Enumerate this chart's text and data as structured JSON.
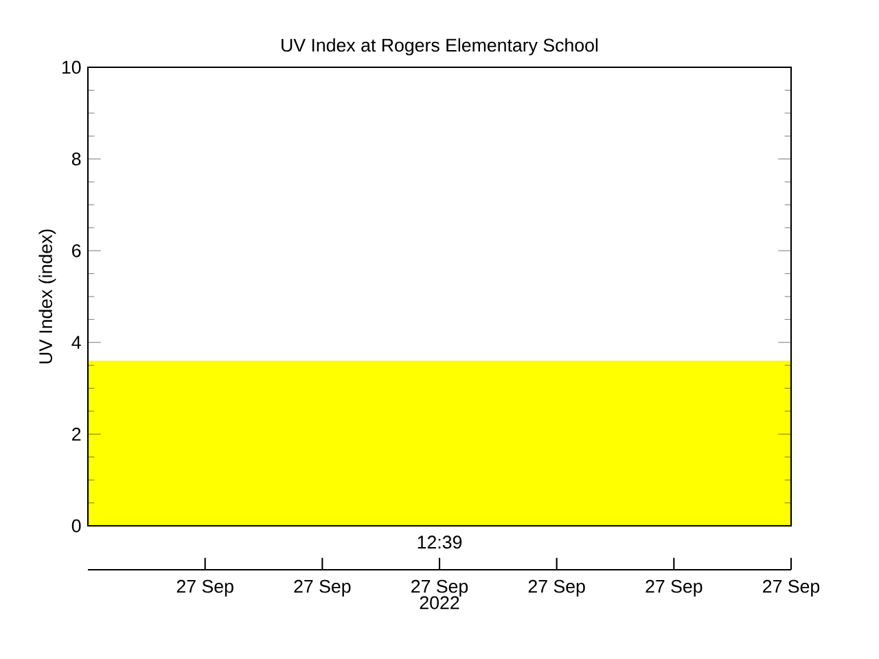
{
  "chart_data": {
    "type": "area",
    "title": "UV Index at Rogers Elementary School",
    "ylabel": "UV Index (index)",
    "xlabel": "2022",
    "annotations": [
      "12:39"
    ],
    "categories": [
      null,
      "27 Sep",
      "27 Sep",
      "27 Sep",
      "27 Sep",
      "27 Sep",
      "27 Sep"
    ],
    "values": [
      3.6,
      3.6,
      3.6,
      3.6,
      3.6,
      3.6,
      3.6
    ],
    "color": "#ffff00",
    "ylim": [
      0,
      10
    ],
    "yticks": [
      0,
      2,
      4,
      6,
      8,
      10
    ]
  }
}
